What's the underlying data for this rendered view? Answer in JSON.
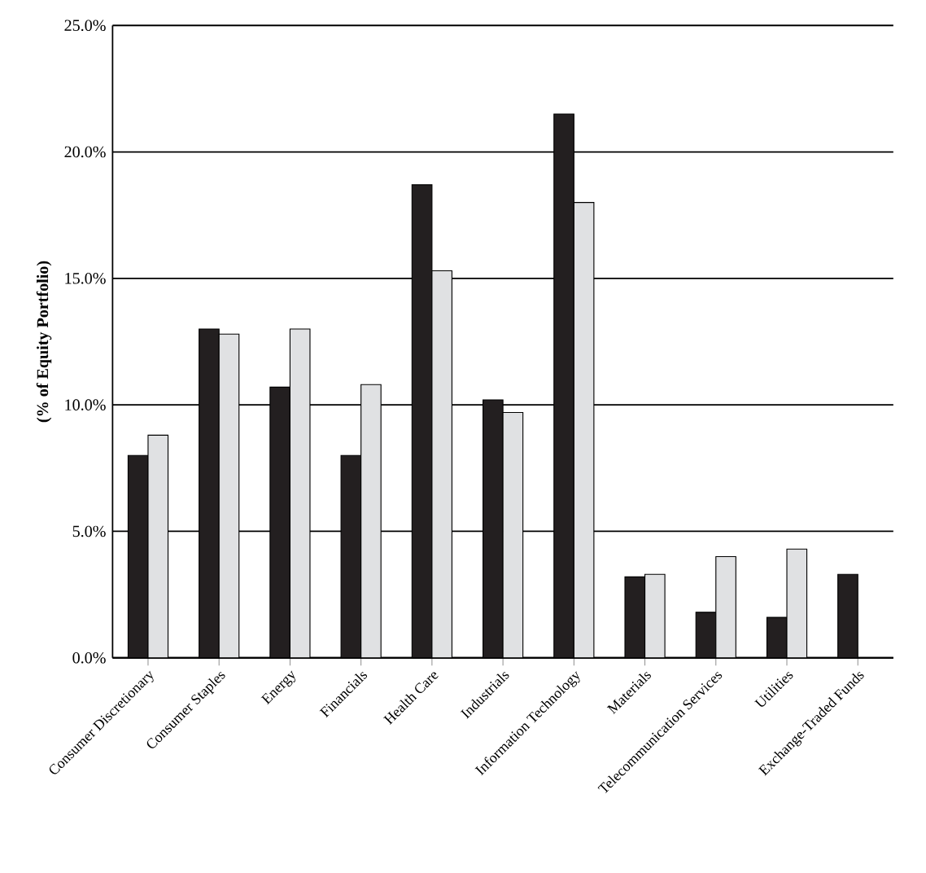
{
  "chart_data": {
    "type": "bar",
    "ylabel": "(% of Equity Portfolio)",
    "categories": [
      "Consumer Discretionary",
      "Consumer Staples",
      "Energy",
      "Financials",
      "Health Care",
      "Industrials",
      "Information Technology",
      "Materials",
      "Telecommunication Services",
      "Utilities",
      "Exchange-Traded Funds"
    ],
    "series": [
      {
        "color": "#231f20",
        "values": [
          8.0,
          13.0,
          10.7,
          8.0,
          18.7,
          10.2,
          21.5,
          3.2,
          1.8,
          1.6,
          3.3
        ]
      },
      {
        "color": "#e0e1e3",
        "values": [
          8.8,
          12.8,
          13.0,
          10.8,
          15.3,
          9.7,
          18.0,
          3.3,
          4.0,
          4.3,
          null
        ]
      }
    ],
    "ylim": [
      0,
      25
    ],
    "yticks": [
      {
        "value": 0,
        "label": "0.0%"
      },
      {
        "value": 5,
        "label": "5.0%"
      },
      {
        "value": 10,
        "label": "10.0%"
      },
      {
        "value": 15,
        "label": "15.0%"
      },
      {
        "value": 20,
        "label": "20.0%"
      },
      {
        "value": 25,
        "label": "25.0%"
      }
    ],
    "grid": "y"
  }
}
